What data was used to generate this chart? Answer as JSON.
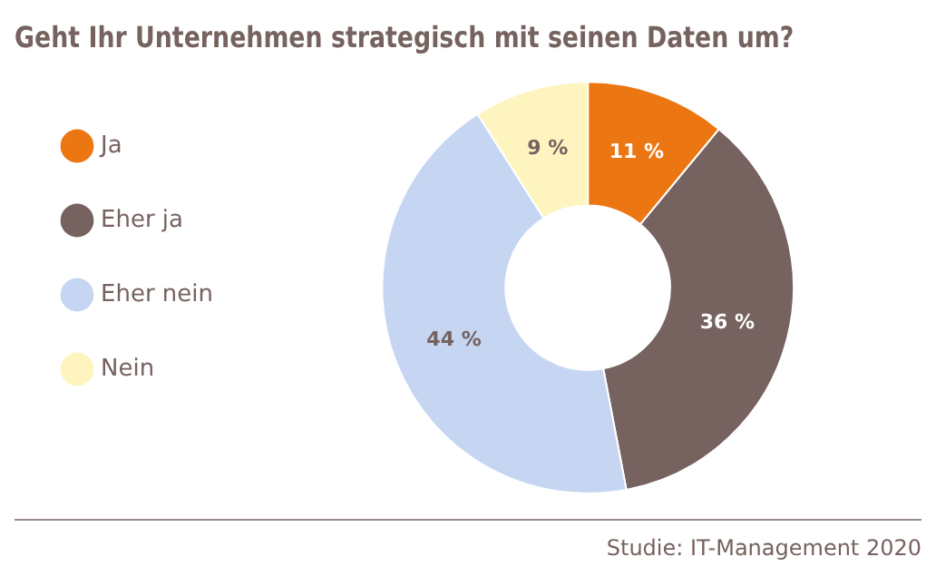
{
  "chart_data": {
    "type": "donut",
    "title": "Geht Ihr Unternehmen strategisch mit seinen Daten um?",
    "categories": [
      "Ja",
      "Eher ja",
      "Eher nein",
      "Nein"
    ],
    "values": [
      11,
      36,
      44,
      9
    ],
    "colors": [
      "#ec7612",
      "#76625f",
      "#c6d6f2",
      "#fdf4c0"
    ],
    "value_labels": [
      "11 %",
      "36 %",
      "44 %",
      "9 %"
    ],
    "legend": "left",
    "annotations": [
      "Studie: IT-Management 2020"
    ]
  }
}
